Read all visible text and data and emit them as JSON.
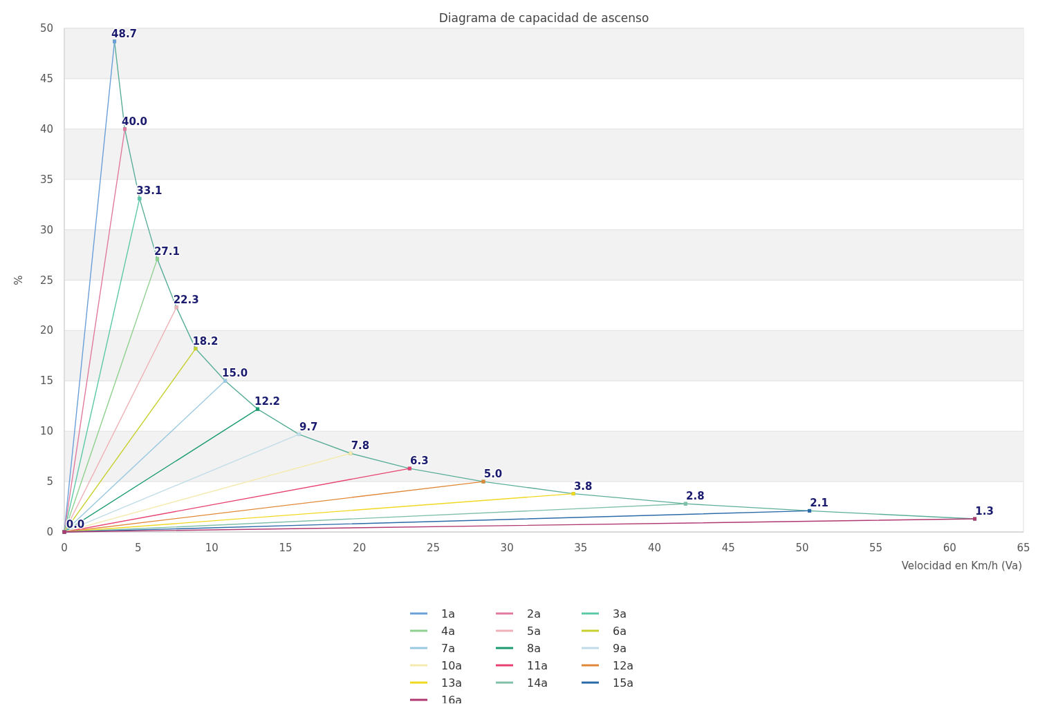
{
  "chart_data": {
    "type": "line",
    "title": "Diagrama de capacidad de ascenso",
    "xlabel": "Velocidad en Km/h (Va)",
    "ylabel": "%",
    "xlim": [
      0,
      65
    ],
    "xticks": [
      0,
      5,
      10,
      15,
      20,
      25,
      30,
      35,
      40,
      45,
      50,
      55,
      60,
      65
    ],
    "ylim": [
      0,
      50
    ],
    "yticks": [
      0,
      5,
      10,
      15,
      20,
      25,
      30,
      35,
      40,
      45,
      50
    ],
    "grid": "y",
    "legend": "bottom",
    "marker": "square",
    "line_style": "solid",
    "series": [
      {
        "color": "#5aae98",
        "x": [
          3.4,
          4.1,
          5.1,
          6.3,
          7.6,
          8.9,
          10.9,
          13.1,
          15.9,
          19.4,
          23.4,
          28.4,
          34.5,
          42.1,
          50.5,
          61.7
        ],
        "values": [
          48.7,
          40.0,
          33.1,
          27.1,
          22.3,
          18.2,
          15.0,
          12.2,
          9.7,
          7.8,
          6.3,
          5.0,
          3.8,
          2.8,
          2.1,
          1.3
        ],
        "value_labels": [
          "48.7",
          "40.0",
          "33.1",
          "27.1",
          "22.3",
          "18.2",
          "15.0",
          "12.2",
          "9.7",
          "7.8",
          "6.3",
          "5.0",
          "3.8",
          "2.8",
          "2.1",
          "1.3"
        ]
      },
      {
        "name": "1a",
        "color": "#6a9fd8",
        "x": [
          0,
          3.4
        ],
        "values": [
          0,
          48.7
        ],
        "value_labels": [
          "0.0",
          null
        ]
      },
      {
        "name": "2a",
        "color": "#e07aa0",
        "x": [
          0,
          4.1
        ],
        "values": [
          0,
          40.0
        ]
      },
      {
        "name": "3a",
        "color": "#5cc8a8",
        "x": [
          0,
          5.1
        ],
        "values": [
          0,
          33.1
        ]
      },
      {
        "name": "4a",
        "color": "#8ed08e",
        "x": [
          0,
          6.3
        ],
        "values": [
          0,
          27.1
        ]
      },
      {
        "name": "5a",
        "color": "#f0b0b8",
        "x": [
          0,
          7.6
        ],
        "values": [
          0,
          22.3
        ]
      },
      {
        "name": "6a",
        "color": "#c8d030",
        "x": [
          0,
          8.9
        ],
        "values": [
          0,
          18.2
        ]
      },
      {
        "name": "7a",
        "color": "#9ac8e0",
        "x": [
          0,
          10.9
        ],
        "values": [
          0,
          15.0
        ]
      },
      {
        "name": "8a",
        "color": "#1a9a70",
        "x": [
          0,
          13.1
        ],
        "values": [
          0,
          12.2
        ]
      },
      {
        "name": "9a",
        "color": "#c0dce8",
        "x": [
          0,
          15.9
        ],
        "values": [
          0,
          9.7
        ]
      },
      {
        "name": "10a",
        "color": "#f4eab0",
        "x": [
          0,
          19.4
        ],
        "values": [
          0,
          7.8
        ]
      },
      {
        "name": "11a",
        "color": "#e84070",
        "x": [
          0,
          23.4
        ],
        "values": [
          0,
          6.3
        ]
      },
      {
        "name": "12a",
        "color": "#e08838",
        "x": [
          0,
          28.4
        ],
        "values": [
          0,
          5.0
        ]
      },
      {
        "name": "13a",
        "color": "#f0d820",
        "x": [
          0,
          34.5
        ],
        "values": [
          0,
          3.8
        ]
      },
      {
        "name": "14a",
        "color": "#80c0a8",
        "x": [
          0,
          42.1
        ],
        "values": [
          0,
          2.8
        ]
      },
      {
        "name": "15a",
        "color": "#2a6aa8",
        "x": [
          0,
          50.5
        ],
        "values": [
          0,
          2.1
        ]
      },
      {
        "name": "16a",
        "color": "#b03870",
        "x": [
          0,
          61.7
        ],
        "values": [
          0,
          1.3
        ]
      }
    ]
  }
}
